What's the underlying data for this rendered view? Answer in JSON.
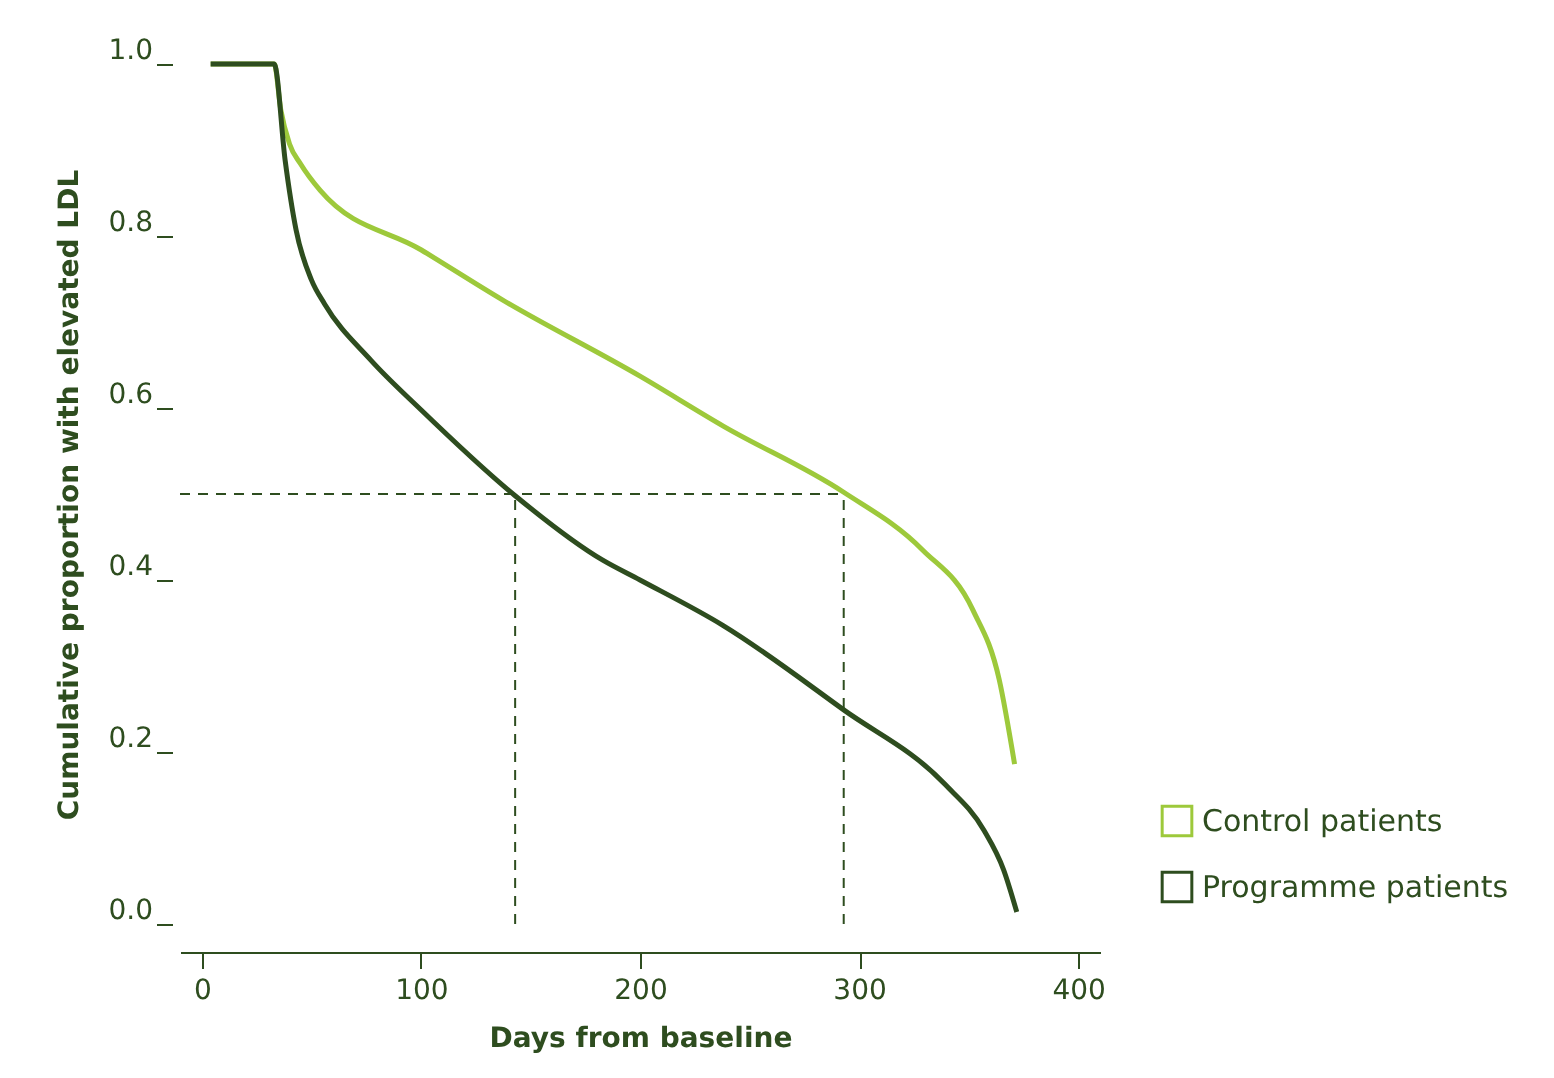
{
  "chart_data": {
    "type": "line",
    "xlabel": "Days from baseline",
    "ylabel": "Cumulative proportion with elevated LDL",
    "xlim": [
      -10,
      410
    ],
    "ylim": [
      0,
      1.0
    ],
    "xticks": [
      0,
      100,
      200,
      300,
      400
    ],
    "yticks": [
      {
        "value": 0,
        "label": "0.0"
      },
      0.2,
      0.4,
      0.6,
      0.8,
      {
        "value": 1,
        "label": "1.0"
      }
    ],
    "grid": false,
    "legend": "bottom right",
    "marker": "none",
    "line_style": "solid",
    "ref_lines": [
      {
        "axis": "y",
        "value": 0.5,
        "color": "#2e4d1f",
        "line_style": "dashed"
      },
      {
        "axis": "x",
        "value": 143,
        "color": "#2e4d1f",
        "line_style": "dashed"
      },
      {
        "axis": "x",
        "value": 293,
        "color": "#2e4d1f",
        "line_style": "dashed"
      }
    ],
    "series": [
      {
        "name": "Control patients",
        "color": "#9dc93b",
        "x": [
          4,
          33,
          36,
          40,
          45,
          54,
          100,
          137,
          200,
          238,
          293,
          329,
          352,
          364,
          371
        ],
        "values": [
          1.0,
          1.0,
          0.947,
          0.907,
          0.884,
          0.853,
          0.784,
          0.726,
          0.637,
          0.579,
          0.502,
          0.435,
          0.365,
          0.284,
          0.186
        ]
      },
      {
        "name": "Programme patients",
        "color": "#2e4d1f",
        "x": [
          4,
          33,
          38,
          43,
          50,
          56,
          77,
          100,
          143,
          183,
          200,
          238,
          293,
          339,
          357,
          366,
          372
        ],
        "values": [
          1.0,
          1.0,
          0.888,
          0.807,
          0.749,
          0.721,
          0.656,
          0.598,
          0.498,
          0.423,
          0.4,
          0.347,
          0.249,
          0.163,
          0.109,
          0.063,
          0.014
        ]
      }
    ]
  }
}
